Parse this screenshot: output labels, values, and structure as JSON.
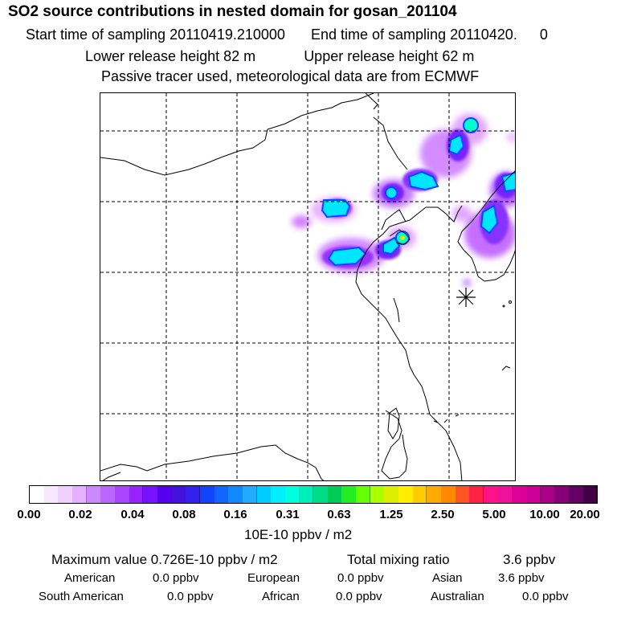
{
  "header": {
    "title": "SO2 source contributions in nested domain for gosan_201104",
    "start_label": "Start time of sampling",
    "start_value": "20110419.210000",
    "end_label": "End time of sampling",
    "end_value": "20110420.",
    "end_value2": "0",
    "lower_label": "Lower release height",
    "lower_value": "82 m",
    "upper_label": "Upper release height",
    "upper_value": "62 m",
    "note": "Passive tracer used, meteorological data are from ECMWF"
  },
  "colorbar": {
    "ticks": [
      "0.00",
      "0.02",
      "0.04",
      "0.08",
      "0.16",
      "0.31",
      "0.63",
      "1.25",
      "2.50",
      "5.00",
      "10.00",
      "20.00"
    ],
    "units": "10E-10 ppbv / m2",
    "colors": [
      "#ffffff",
      "#f8e8ff",
      "#f0d0ff",
      "#e4b0ff",
      "#cc88ff",
      "#bb66ff",
      "#aa44ff",
      "#9922ff",
      "#7711ff",
      "#5500ee",
      "#4411dd",
      "#3322ee",
      "#1144ff",
      "#1166ff",
      "#1188ff",
      "#22aaff",
      "#00ccff",
      "#00eeff",
      "#00ffdd",
      "#00eebb",
      "#00dd88",
      "#00cc55",
      "#22ee22",
      "#66ff00",
      "#aaff00",
      "#ddee00",
      "#ffee00",
      "#ffcc00",
      "#ffaa00",
      "#ff8800",
      "#ff5522",
      "#ff2244",
      "#ff1188",
      "#ee1199",
      "#dd0099",
      "#cc0099",
      "#aa0088",
      "#880077",
      "#660066",
      "#440044"
    ]
  },
  "stats": {
    "max_label": "Maximum value",
    "max_value": "0.726E-10 ppbv / m2",
    "total_label": "Total mixing ratio",
    "total_value": "3.6 ppbv",
    "american_label": "American",
    "american_value": "0.0 ppbv",
    "european_label": "European",
    "european_value": "0.0 ppbv",
    "asian_label": "Asian",
    "asian_value": "3.6 ppbv",
    "south_american_label": "South American",
    "south_american_value": "0.0 ppbv",
    "african_label": "African",
    "african_value": "0.0 ppbv",
    "australian_label": "Australian",
    "australian_value": "0.0 ppbv"
  }
}
